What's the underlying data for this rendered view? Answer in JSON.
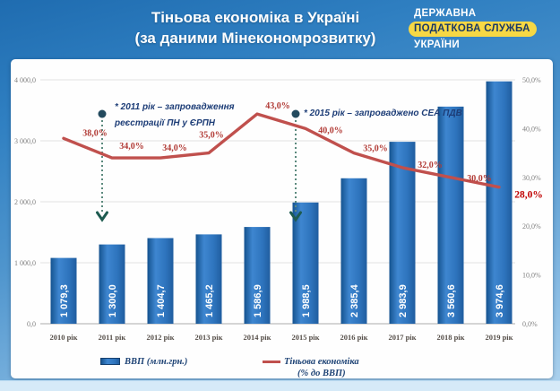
{
  "header": {
    "title_line1": "Тіньова економіка в Україні",
    "title_line2": "(за даними Мінекономрозвитку)",
    "agency": {
      "line1": "ДЕРЖАВНА",
      "line2": "ПОДАТКОВА СЛУЖБА",
      "line3": "УКРАЇНИ"
    }
  },
  "legend": {
    "bar_label": "ВВП (млн.грн.)",
    "line_label_1": "Тіньова економіка",
    "line_label_2": "(% до ВВП)"
  },
  "chart_data": {
    "type": "bar",
    "categories": [
      "2010 рік",
      "2011 рік",
      "2012 рік",
      "2013 рік",
      "2014 рік",
      "2015 рік",
      "2016 рік",
      "2017 рік",
      "2018 рік",
      "2019 рік"
    ],
    "series": [
      {
        "name": "ВВП (млн.грн.)",
        "type": "bar",
        "axis": "left",
        "values": [
          1079.3,
          1300.0,
          1404.7,
          1465.2,
          1586.9,
          1988.5,
          2385.4,
          2983.9,
          3560.6,
          3974.6
        ],
        "labels": [
          "1 079,3",
          "1 300,0",
          "1 404,7",
          "1 465,2",
          "1 586,9",
          "1 988,5",
          "2 385,4",
          "2 983,9",
          "3 560,6",
          "3 974,6"
        ]
      },
      {
        "name": "Тіньова економіка (% до ВВП)",
        "type": "line",
        "axis": "right",
        "values": [
          38,
          34,
          34,
          35,
          43,
          40,
          35,
          32,
          30,
          28
        ],
        "labels": [
          "38,0%",
          "34,0%",
          "34,0%",
          "35,0%",
          "43,0%",
          "40,0%",
          "35,0%",
          "32,0%",
          "30,0%",
          "28,0%"
        ]
      }
    ],
    "left_axis": {
      "min": 0,
      "max": 4000,
      "step": 1000,
      "tick_labels": [
        "0,0",
        "1 000,0",
        "2 000,0",
        "3 000,0",
        "4 000,0"
      ]
    },
    "right_axis": {
      "min": 0,
      "max": 50,
      "step": 10,
      "tick_labels": [
        "0,0%",
        "10,0%",
        "20,0%",
        "30,0%",
        "40,0%",
        "50,0%"
      ]
    },
    "annotations": [
      {
        "x_index": 1,
        "line1": "* 2011 рік – запровадження",
        "line2": "реєстрації ПН у ЄРПН"
      },
      {
        "x_index": 5,
        "line1": "* 2015 рік – запроваджено СЕА ПДВ",
        "line2": ""
      }
    ],
    "colors": {
      "bar": "#2e74bd",
      "bar_dark": "#15538f",
      "bar_light": "#3e86d0",
      "line": "#c0504d",
      "pct_label": "#b23c37",
      "pct_label_last": "#c00000",
      "annotation_teal": "#1d5b50",
      "grid": "#e3e3e3",
      "axis_text": "#808080",
      "x_text": "#57504a"
    },
    "legend_position": "bottom",
    "grid": true
  }
}
